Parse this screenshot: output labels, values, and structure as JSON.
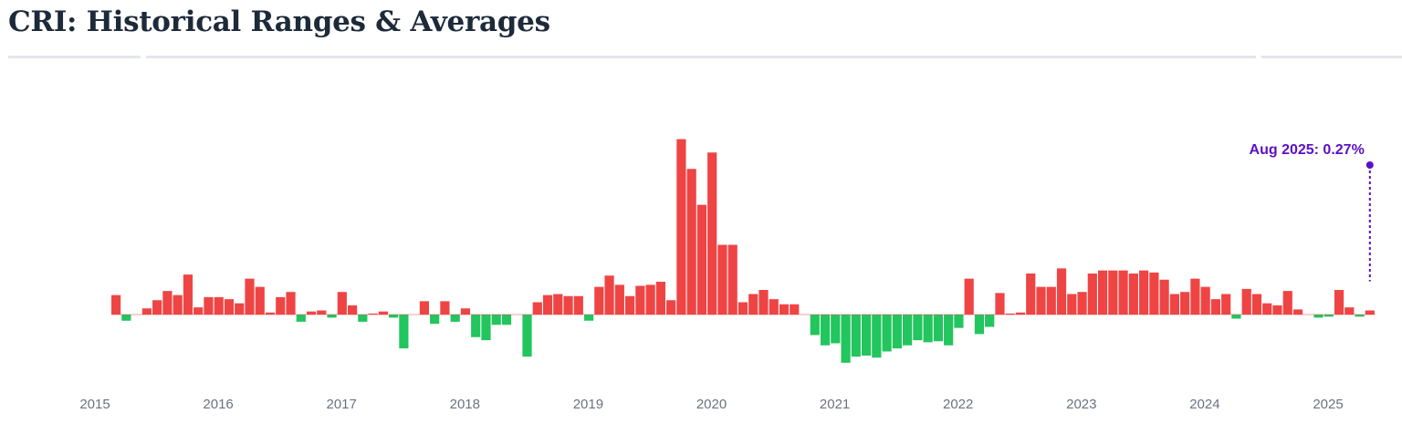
{
  "title": "CRI: Historical Ranges & Averages",
  "colors": {
    "positive": "#ef4444",
    "negative": "#22c55e",
    "highlight": "#5b10c7",
    "zero_line": "#ef4444"
  },
  "chart_data": {
    "type": "bar",
    "title": "CRI: Historical Ranges & Averages",
    "xlabel": "",
    "ylabel": "",
    "x_ticks": [
      "2015",
      "2016",
      "2017",
      "2018",
      "2019",
      "2020",
      "2021",
      "2022",
      "2023",
      "2024",
      "2025"
    ],
    "grid": false,
    "legend": "none",
    "unit": "%",
    "start_year": 2015,
    "start_month": 4,
    "ylim": [
      -0.5,
      1.8
    ],
    "values": [
      0.19,
      -0.06,
      null,
      0.06,
      0.14,
      0.23,
      0.19,
      0.39,
      0.07,
      0.17,
      0.17,
      0.15,
      0.11,
      0.35,
      0.27,
      0.02,
      0.17,
      0.22,
      -0.07,
      0.03,
      0.04,
      -0.03,
      0.22,
      0.09,
      -0.07,
      0.01,
      0.03,
      -0.03,
      -0.33,
      null,
      0.13,
      -0.09,
      0.13,
      -0.07,
      0.06,
      -0.22,
      -0.25,
      -0.1,
      -0.1,
      null,
      -0.41,
      0.12,
      0.19,
      0.2,
      0.18,
      0.18,
      -0.06,
      0.27,
      0.38,
      0.29,
      0.18,
      0.28,
      0.29,
      0.32,
      0.14,
      1.71,
      1.42,
      1.07,
      1.58,
      0.68,
      0.68,
      0.12,
      0.2,
      0.24,
      0.15,
      0.1,
      0.1,
      null,
      -0.2,
      -0.3,
      -0.28,
      -0.47,
      -0.41,
      -0.4,
      -0.42,
      -0.36,
      -0.33,
      -0.3,
      -0.25,
      -0.27,
      -0.26,
      -0.3,
      -0.13,
      0.35,
      -0.19,
      -0.12,
      0.21,
      0.01,
      0.02,
      0.4,
      0.27,
      0.27,
      0.45,
      0.2,
      0.22,
      0.4,
      0.43,
      0.43,
      0.43,
      0.4,
      0.43,
      0.41,
      0.34,
      0.2,
      0.22,
      0.35,
      0.27,
      0.15,
      0.2,
      -0.04,
      0.25,
      0.2,
      0.11,
      0.09,
      0.23,
      0.05,
      null,
      -0.03,
      -0.02,
      0.24,
      0.07,
      -0.02,
      0.04
    ],
    "callout": {
      "label": "Aug 2025: 0.27%",
      "value": 0.27
    }
  }
}
